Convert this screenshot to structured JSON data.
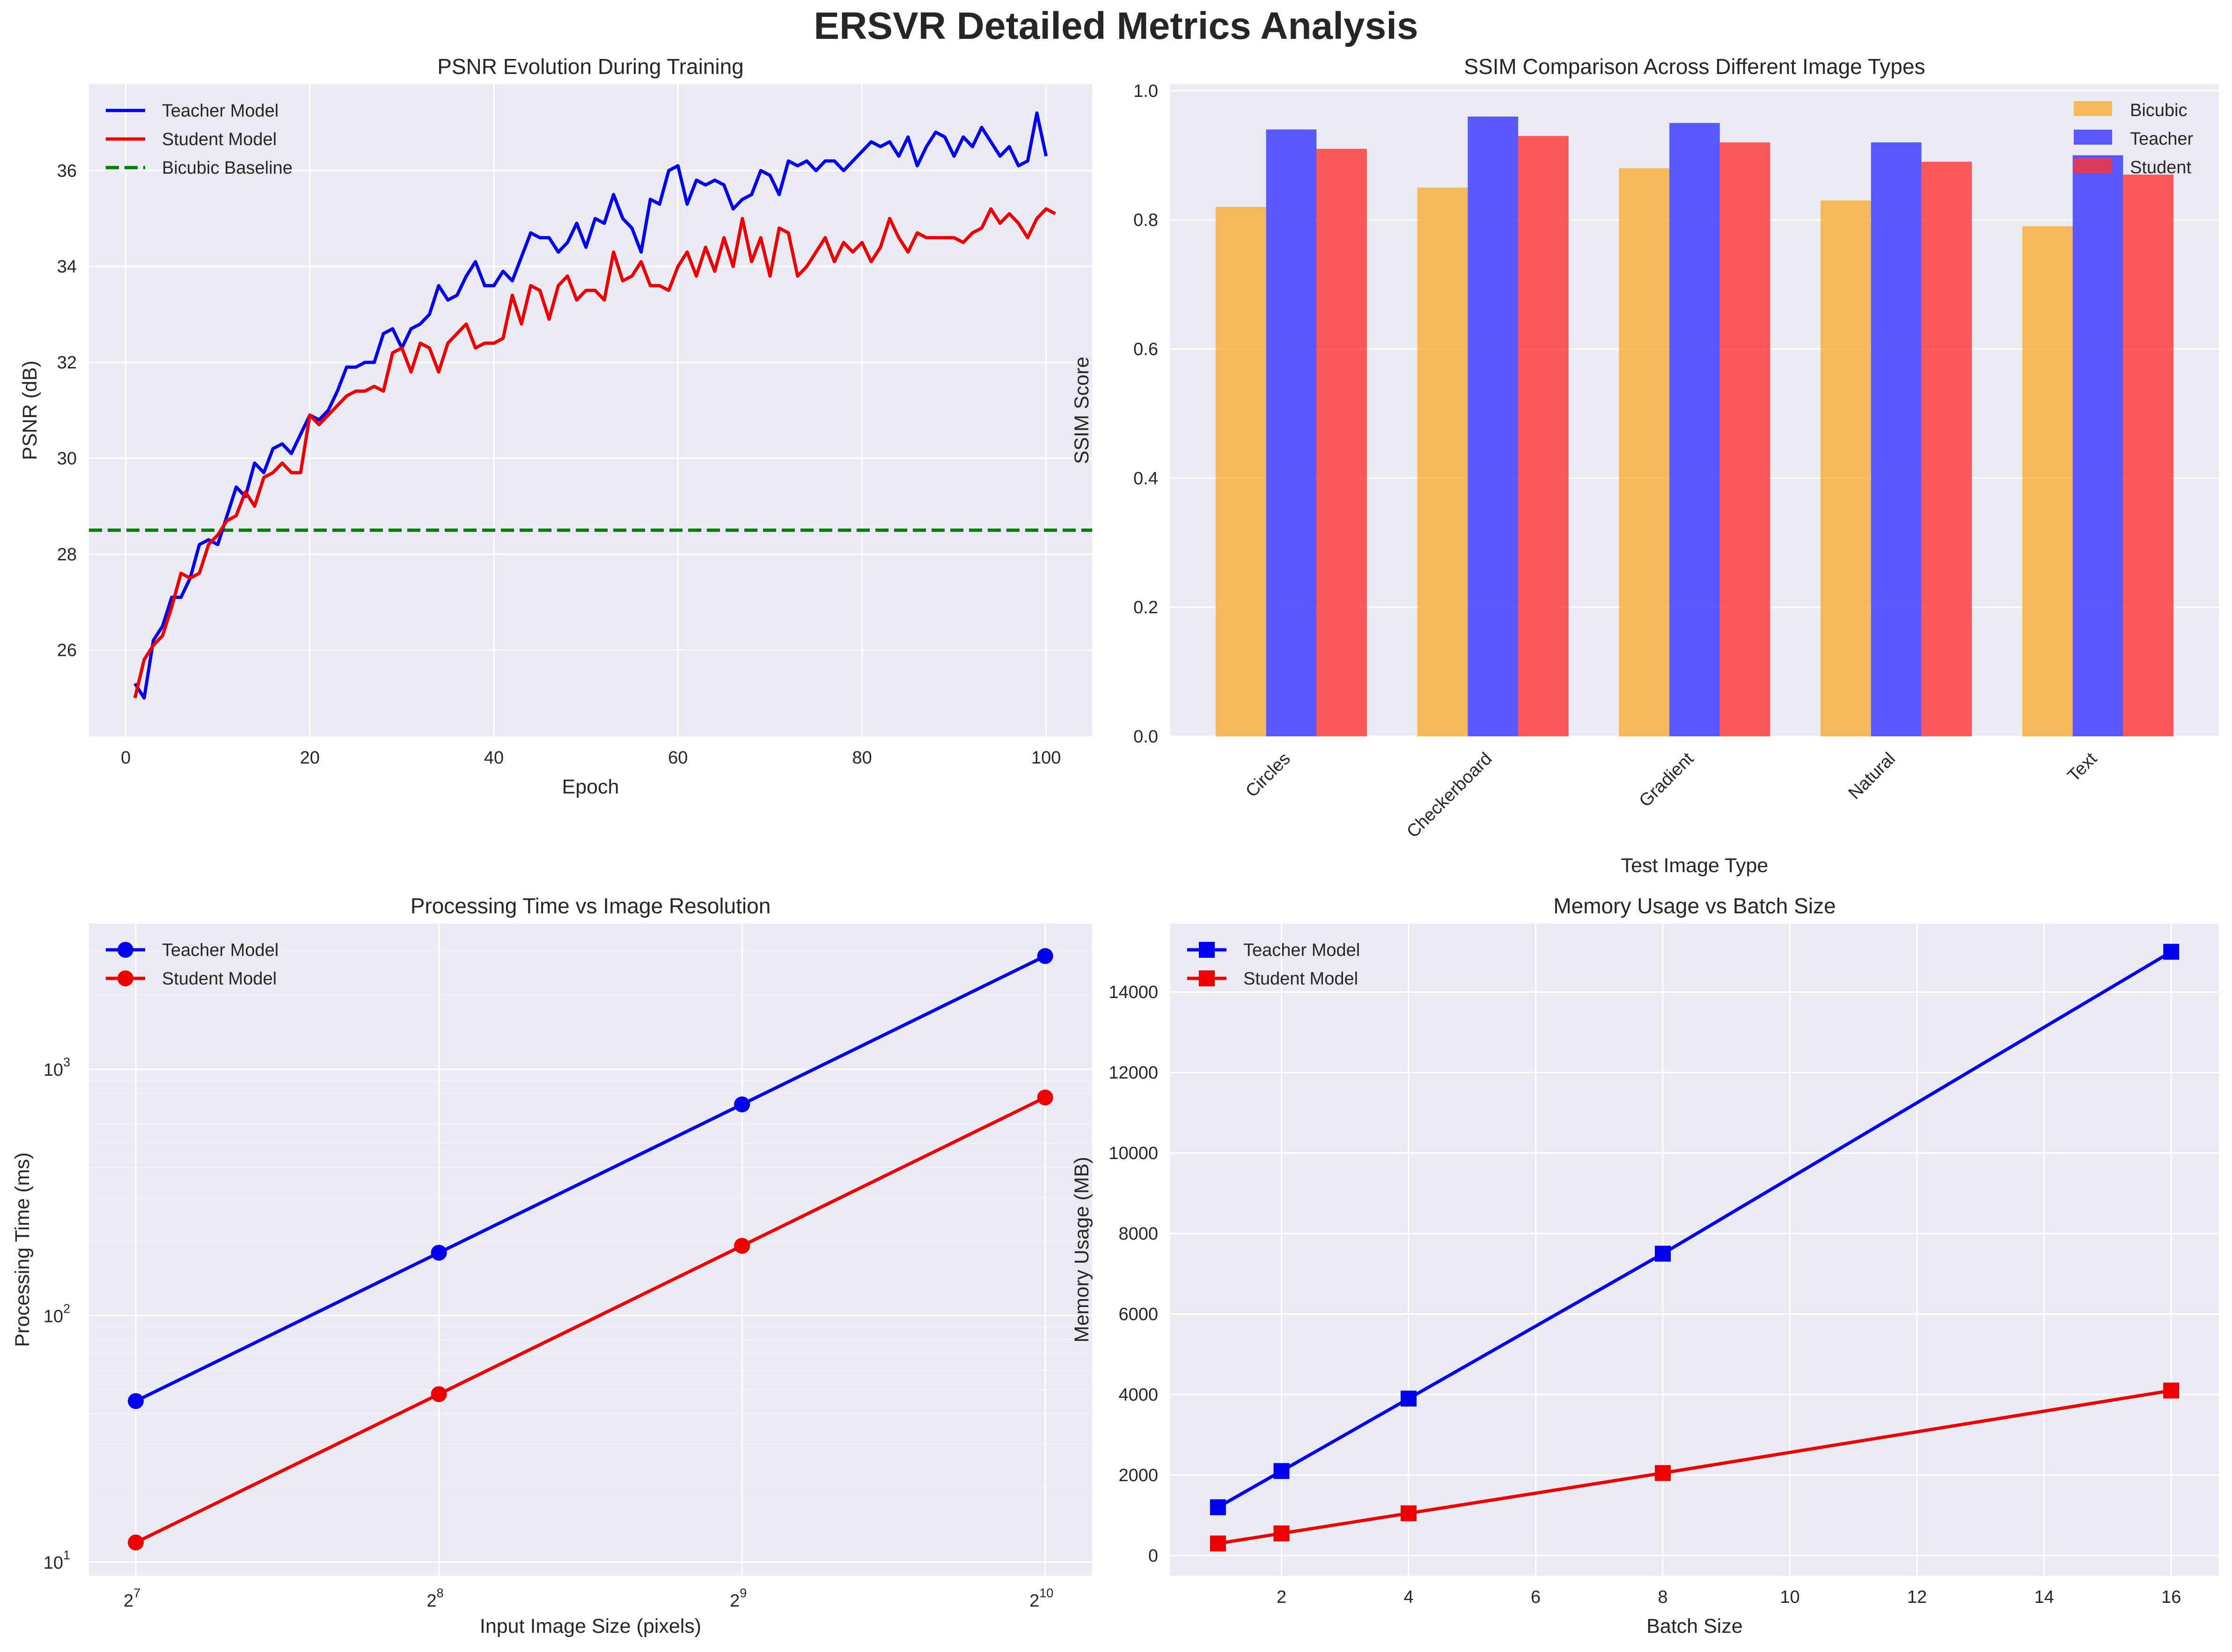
{
  "figure_title": "ERSVR Detailed Metrics Analysis",
  "colors": {
    "teacher": "#0000ee",
    "student": "#ee0000",
    "baseline": "#008000",
    "bicubic_bar": "#f7ad32",
    "teacher_bar": "#3333ff",
    "student_bar": "#ff3333",
    "panel_bg": "#eaeaf2",
    "grid": "#ffffff"
  },
  "chart_data": [
    {
      "id": "psnr",
      "type": "line",
      "title": "PSNR Evolution During Training",
      "xlabel": "Epoch",
      "ylabel": "PSNR (dB)",
      "xlim": [
        -4,
        105
      ],
      "ylim": [
        24.2,
        37.8
      ],
      "xticks": [
        0,
        20,
        40,
        60,
        80,
        100
      ],
      "yticks": [
        26,
        28,
        30,
        32,
        34,
        36
      ],
      "grid": true,
      "legend": "top-left",
      "baseline": {
        "name": "Bicubic Baseline",
        "value": 28.5
      },
      "series": [
        {
          "name": "Teacher Model",
          "color_key": "teacher",
          "x_start": 1,
          "values": [
            25.3,
            25.0,
            26.2,
            26.5,
            27.1,
            27.1,
            27.5,
            28.2,
            28.3,
            28.2,
            28.8,
            29.4,
            29.2,
            29.9,
            29.7,
            30.2,
            30.3,
            30.1,
            30.5,
            30.9,
            30.8,
            31.0,
            31.4,
            31.9,
            31.9,
            32.0,
            32.0,
            32.6,
            32.7,
            32.3,
            32.7,
            32.8,
            33.0,
            33.6,
            33.3,
            33.4,
            33.8,
            34.1,
            33.6,
            33.6,
            33.9,
            33.7,
            34.2,
            34.7,
            34.6,
            34.6,
            34.3,
            34.5,
            34.9,
            34.4,
            35.0,
            34.9,
            35.5,
            35.0,
            34.8,
            34.3,
            35.4,
            35.3,
            36.0,
            36.1,
            35.3,
            35.8,
            35.7,
            35.8,
            35.7,
            35.2,
            35.4,
            35.5,
            36.0,
            35.9,
            35.5,
            36.2,
            36.1,
            36.2,
            36.0,
            36.2,
            36.2,
            36.0,
            36.2,
            36.4,
            36.6,
            36.5,
            36.6,
            36.3,
            36.7,
            36.1,
            36.5,
            36.8,
            36.7,
            36.3,
            36.7,
            36.5,
            36.9,
            36.6,
            36.3,
            36.5,
            36.1,
            36.2,
            37.2,
            36.3
          ]
        },
        {
          "name": "Student Model",
          "color_key": "student",
          "x_start": 1,
          "values": [
            25.0,
            25.8,
            26.1,
            26.3,
            26.9,
            27.6,
            27.5,
            27.6,
            28.2,
            28.4,
            28.7,
            28.8,
            29.3,
            29.0,
            29.6,
            29.7,
            29.9,
            29.7,
            29.7,
            30.9,
            30.7,
            30.9,
            31.1,
            31.3,
            31.4,
            31.4,
            31.5,
            31.4,
            32.2,
            32.3,
            31.8,
            32.4,
            32.3,
            31.8,
            32.4,
            32.6,
            32.8,
            32.3,
            32.4,
            32.4,
            32.5,
            33.4,
            32.8,
            33.6,
            33.5,
            32.9,
            33.6,
            33.8,
            33.3,
            33.5,
            33.5,
            33.3,
            34.3,
            33.7,
            33.8,
            34.1,
            33.6,
            33.6,
            33.5,
            34.0,
            34.3,
            33.8,
            34.4,
            33.9,
            34.6,
            34.0,
            35.0,
            34.1,
            34.6,
            33.8,
            34.8,
            34.7,
            33.8,
            34.0,
            34.3,
            34.6,
            34.1,
            34.5,
            34.3,
            34.5,
            34.1,
            34.4,
            35.0,
            34.6,
            34.3,
            34.7,
            34.6,
            34.6,
            34.6,
            34.6,
            34.5,
            34.7,
            34.8,
            35.2,
            34.9,
            35.1,
            34.9,
            34.6,
            35.0,
            35.2,
            35.1
          ]
        }
      ]
    },
    {
      "id": "ssim",
      "type": "bar",
      "title": "SSIM Comparison Across Different Image Types",
      "xlabel": "Test Image Type",
      "ylabel": "SSIM Score",
      "ylim": [
        0,
        1.01
      ],
      "yticks": [
        0.0,
        0.2,
        0.4,
        0.6,
        0.8,
        1.0
      ],
      "grid": true,
      "legend": "top-right",
      "categories": [
        "Circles",
        "Checkerboard",
        "Gradient",
        "Natural",
        "Text"
      ],
      "series": [
        {
          "name": "Bicubic",
          "color_key": "bicubic_bar",
          "values": [
            0.82,
            0.85,
            0.88,
            0.83,
            0.79
          ]
        },
        {
          "name": "Teacher",
          "color_key": "teacher_bar",
          "values": [
            0.94,
            0.96,
            0.95,
            0.92,
            0.9
          ]
        },
        {
          "name": "Student",
          "color_key": "student_bar",
          "values": [
            0.91,
            0.93,
            0.92,
            0.89,
            0.87
          ]
        }
      ]
    },
    {
      "id": "time",
      "type": "line",
      "title": "Processing Time vs Image Resolution",
      "xlabel": "Input Image Size (pixels)",
      "ylabel": "Processing Time (ms)",
      "xscale": "log2",
      "yscale": "log10",
      "xlim": [
        115,
        1140
      ],
      "ylim": [
        8.8,
        3900
      ],
      "xticks": [
        128,
        256,
        512,
        1024
      ],
      "xtick_base": "2",
      "xtick_exponents": [
        "7",
        "8",
        "9",
        "10"
      ],
      "yticks": [
        10,
        100,
        1000
      ],
      "ytick_base": "10",
      "ytick_exponents": [
        "1",
        "2",
        "3"
      ],
      "grid": true,
      "legend": "top-left",
      "marker": "circle",
      "x": [
        128,
        256,
        512,
        1024
      ],
      "series": [
        {
          "name": "Teacher Model",
          "color_key": "teacher",
          "values": [
            45,
            180,
            720,
            2880
          ]
        },
        {
          "name": "Student Model",
          "color_key": "student",
          "values": [
            12,
            48,
            192,
            768
          ]
        }
      ]
    },
    {
      "id": "memory",
      "type": "line",
      "title": "Memory Usage vs Batch Size",
      "xlabel": "Batch Size",
      "ylabel": "Memory Usage (MB)",
      "xlim": [
        0.25,
        16.75
      ],
      "ylim": [
        -500,
        15700
      ],
      "xticks": [
        2,
        4,
        6,
        8,
        10,
        12,
        14,
        16
      ],
      "yticks": [
        0,
        2000,
        4000,
        6000,
        8000,
        10000,
        12000,
        14000
      ],
      "grid": true,
      "legend": "top-left",
      "marker": "square",
      "x": [
        1,
        2,
        4,
        8,
        16
      ],
      "series": [
        {
          "name": "Teacher Model",
          "color_key": "teacher",
          "values": [
            1200,
            2100,
            3900,
            7500,
            15000
          ]
        },
        {
          "name": "Student Model",
          "color_key": "student",
          "values": [
            300,
            550,
            1050,
            2050,
            4100
          ]
        }
      ]
    }
  ]
}
